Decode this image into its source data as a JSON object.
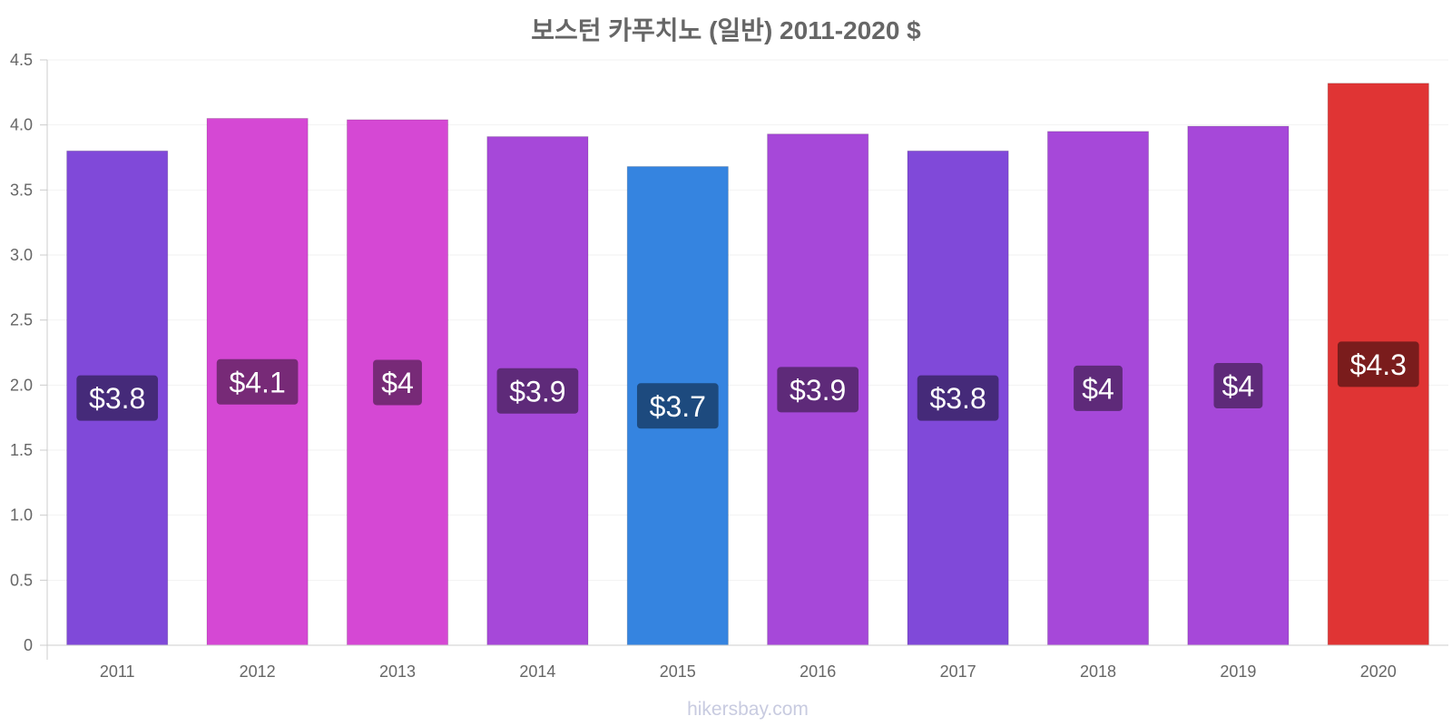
{
  "chart_data": {
    "type": "bar",
    "title": "보스턴 카푸치노 (일반) 2011-2020 $",
    "categories": [
      "2011",
      "2012",
      "2013",
      "2014",
      "2015",
      "2016",
      "2017",
      "2018",
      "2019",
      "2020"
    ],
    "values": [
      3.8,
      4.05,
      4.04,
      3.91,
      3.68,
      3.93,
      3.8,
      3.95,
      3.99,
      4.32
    ],
    "data_labels": [
      "$3.8",
      "$4.1",
      "$4",
      "$3.9",
      "$3.7",
      "$3.9",
      "$3.8",
      "$4",
      "$4",
      "$4.3"
    ],
    "bar_colors": [
      "#8049d9",
      "#d548d4",
      "#d548d4",
      "#a648d9",
      "#3584e0",
      "#a648d9",
      "#8049d9",
      "#a648d9",
      "#a648d9",
      "#e03434"
    ],
    "label_bg_colors": [
      "#452a79",
      "#772a77",
      "#772a77",
      "#5e2a79",
      "#1d4a7e",
      "#5e2a79",
      "#452a79",
      "#5e2a79",
      "#5e2a79",
      "#7a1c1c"
    ],
    "ylim": [
      0,
      4.5
    ],
    "yticks": [
      "0",
      "0.5",
      "1.0",
      "1.5",
      "2.0",
      "2.5",
      "3.0",
      "3.5",
      "4.0",
      "4.5"
    ],
    "xlabel": "",
    "ylabel": "",
    "grid": true,
    "watermark": "hikersbay.com"
  }
}
